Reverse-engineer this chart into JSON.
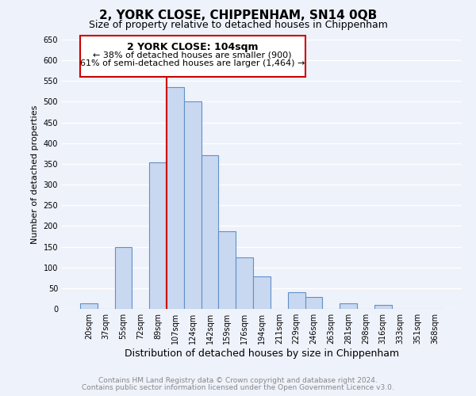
{
  "title": "2, YORK CLOSE, CHIPPENHAM, SN14 0QB",
  "subtitle": "Size of property relative to detached houses in Chippenham",
  "xlabel": "Distribution of detached houses by size in Chippenham",
  "ylabel": "Number of detached properties",
  "bar_labels": [
    "20sqm",
    "37sqm",
    "55sqm",
    "72sqm",
    "89sqm",
    "107sqm",
    "124sqm",
    "142sqm",
    "159sqm",
    "176sqm",
    "194sqm",
    "211sqm",
    "229sqm",
    "246sqm",
    "263sqm",
    "281sqm",
    "298sqm",
    "316sqm",
    "333sqm",
    "351sqm",
    "368sqm"
  ],
  "bar_values": [
    13,
    0,
    150,
    0,
    353,
    535,
    500,
    370,
    188,
    125,
    78,
    0,
    40,
    28,
    0,
    14,
    0,
    10,
    0,
    0,
    0
  ],
  "bar_color": "#c8d8f0",
  "bar_edge_color": "#6090c8",
  "vline_color": "#cc0000",
  "vline_x_index": 5,
  "ylim": [
    0,
    650
  ],
  "yticks": [
    0,
    50,
    100,
    150,
    200,
    250,
    300,
    350,
    400,
    450,
    500,
    550,
    600,
    650
  ],
  "annotation_title": "2 YORK CLOSE: 104sqm",
  "annotation_line1": "← 38% of detached houses are smaller (900)",
  "annotation_line2": "61% of semi-detached houses are larger (1,464) →",
  "annotation_box_color": "#ffffff",
  "annotation_box_edge": "#cc0000",
  "footer1": "Contains HM Land Registry data © Crown copyright and database right 2024.",
  "footer2": "Contains public sector information licensed under the Open Government Licence v3.0.",
  "background_color": "#eef2fb",
  "plot_bg_color": "#eef2fb",
  "grid_color": "#ffffff",
  "title_fontsize": 11,
  "subtitle_fontsize": 9,
  "ylabel_fontsize": 8,
  "xlabel_fontsize": 9,
  "tick_fontsize": 7,
  "footer_fontsize": 6.5,
  "footer_color": "#888888"
}
